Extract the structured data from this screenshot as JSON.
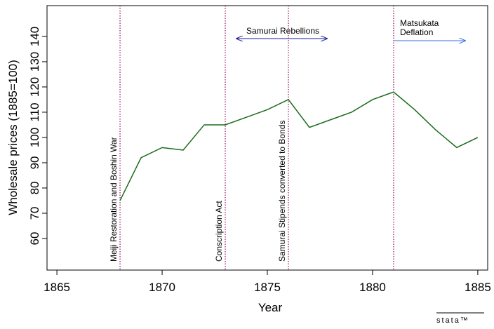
{
  "chart_data": {
    "type": "line",
    "x_label": "Year",
    "y_label": "Wholesale prices (1885=100)",
    "x": [
      1868,
      1869,
      1870,
      1871,
      1872,
      1873,
      1874,
      1875,
      1876,
      1877,
      1878,
      1879,
      1880,
      1881,
      1882,
      1883,
      1884,
      1885
    ],
    "series": [
      {
        "color": "#1b6b1b",
        "values": [
          75,
          92,
          96,
          95,
          105,
          105,
          108,
          111,
          115,
          104,
          107,
          110,
          115,
          118,
          111,
          103,
          96,
          100
        ]
      }
    ],
    "xlim": [
      1864.53,
      1885.47
    ],
    "ylim": [
      47.5,
      152.2
    ],
    "xticks": [
      1865,
      1870,
      1875,
      1880,
      1885
    ],
    "yticks": [
      60,
      70,
      80,
      90,
      100,
      110,
      120,
      130,
      140
    ],
    "event_lines": [
      {
        "x": 1868,
        "label": "Meiji Restoration and Boshin War"
      },
      {
        "x": 1873,
        "label": "Conscription Act"
      },
      {
        "x": 1876,
        "label": "Samurai Stipends converted to Bonds"
      },
      {
        "x": 1881,
        "label": ""
      }
    ],
    "event_line_color": "#a0206a",
    "annotations": [
      {
        "lines": [
          "Samurai Rebellions"
        ]
      },
      {
        "lines": [
          "Matsukata",
          "Deflation"
        ]
      }
    ],
    "watermark": "stata™"
  }
}
